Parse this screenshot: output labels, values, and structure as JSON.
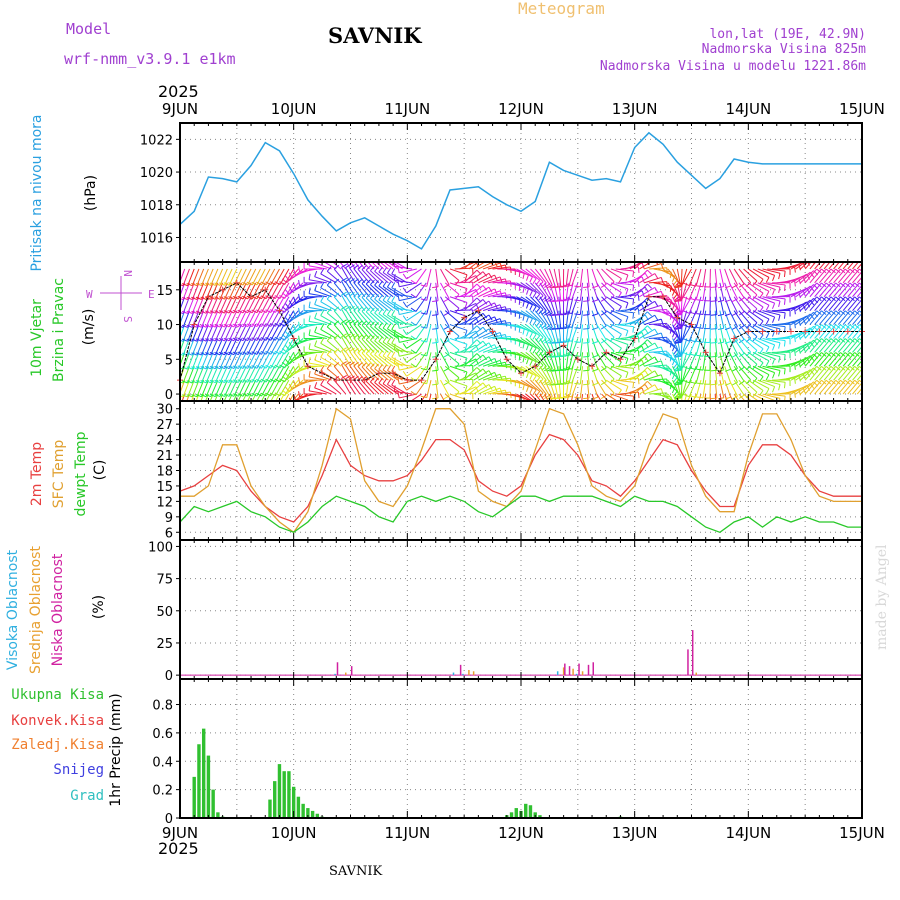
{
  "header": {
    "model_label": "Model",
    "model_name": "wrf-nmm_v3.9.1 e1km",
    "location_name": "SAVNIK",
    "chart_type_label": "Meteogram",
    "coords": "lon,lat (19E, 42.9N)",
    "elevation": "Nadmorska Visina 825m",
    "model_elevation": "Nadmorska Visina u modelu 1221.86m"
  },
  "footer": {
    "location_name": "SAVNIK",
    "credit": "made by Angel"
  },
  "x_axis": {
    "year_top": "2025",
    "year_bottom": "2025",
    "days": [
      "9JUN",
      "10JUN",
      "11JUN",
      "12JUN",
      "13JUN",
      "14JUN",
      "15JUN"
    ],
    "range_hours": [
      0,
      144
    ]
  },
  "colors": {
    "pressure": "#2aa0e0",
    "t2m": "#e84040",
    "tsfc": "#e0a030",
    "dewpt": "#28c828",
    "high_cloud": "#30b0e0",
    "mid_cloud": "#e8a030",
    "low_cloud": "#d020a0",
    "precip_total": "#30c030",
    "precip_conv": "#e84040",
    "precip_freeze": "#f08030",
    "precip_snow": "#4040e0",
    "precip_hail": "#30c0c0",
    "title_purple": "#a040d0",
    "meteogram_orange": "#f0c070",
    "wind_legend": "#c050d0"
  },
  "chart_data": [
    {
      "type": "line",
      "panel": "pressure",
      "ylabel_lines": [
        "Pritisak na nivou mora",
        "(hPa)"
      ],
      "yticks": [
        1016,
        1018,
        1020,
        1022
      ],
      "ylim": [
        1014.5,
        1023.0
      ],
      "series": [
        {
          "x": [
            0,
            3,
            6,
            9,
            12,
            15,
            18,
            21,
            24,
            27,
            30,
            33,
            36,
            39,
            42,
            45,
            48,
            51,
            54,
            57,
            60,
            63,
            66,
            69,
            72,
            75,
            78,
            81,
            84,
            87,
            90,
            93,
            96,
            99,
            102,
            105,
            108,
            111,
            114,
            117,
            120,
            123,
            126,
            129,
            132,
            135,
            138,
            141,
            144
          ],
          "y": [
            1016.8,
            1017.6,
            1019.7,
            1019.6,
            1019.4,
            1020.4,
            1021.8,
            1021.3,
            1019.9,
            1018.3,
            1017.3,
            1016.4,
            1016.9,
            1017.2,
            1016.7,
            1016.2,
            1015.8,
            1015.3,
            1016.7,
            1018.9,
            1019.0,
            1019.1,
            1018.5,
            1018.0,
            1017.6,
            1018.2,
            1020.6,
            1020.1,
            1019.8,
            1019.5,
            1019.6,
            1019.4,
            1021.5,
            1022.4,
            1021.7,
            1020.6,
            1019.8,
            1019.0,
            1019.6,
            1020.8,
            1020.6,
            1020.5,
            1020.5,
            1020.5,
            1020.5,
            1020.5,
            1020.5,
            1020.5,
            1020.5
          ]
        }
      ]
    },
    {
      "type": "barb",
      "panel": "wind",
      "ylabel_lines": [
        "10m Vjetar",
        "Brzina i Pravac",
        "(m/s)"
      ],
      "legend_compass": {
        "north": "N",
        "west": "W",
        "east": "E",
        "south": "S"
      },
      "yticks": [
        0,
        5,
        10,
        15
      ],
      "ylim": [
        -1,
        19
      ],
      "series": [
        {
          "name": "wind speed",
          "x": [
            0,
            3,
            6,
            9,
            12,
            15,
            18,
            21,
            24,
            27,
            30,
            33,
            36,
            39,
            42,
            45,
            48,
            51,
            54,
            57,
            60,
            63,
            66,
            69,
            72,
            75,
            78,
            81,
            84,
            87,
            90,
            93,
            96,
            99,
            102,
            105,
            108,
            111,
            114,
            117,
            120,
            123,
            126,
            129,
            132,
            135,
            138,
            141,
            144
          ],
          "y": [
            2,
            10,
            14,
            15,
            16,
            14,
            15,
            12,
            8,
            4,
            3,
            2,
            2,
            2,
            3,
            3,
            2,
            2,
            5,
            9,
            11,
            12,
            9,
            5,
            3,
            4,
            6,
            7,
            5,
            4,
            6,
            5,
            8,
            14,
            14,
            11,
            10,
            6,
            3,
            8,
            9,
            9,
            9,
            9,
            9,
            9,
            9,
            9,
            9
          ]
        }
      ],
      "speed_levels": [
        0,
        2,
        4,
        6,
        8,
        10,
        12,
        14,
        16,
        18
      ],
      "direction_by_hour": [
        {
          "x": 0,
          "dir": 200
        },
        {
          "x": 24,
          "dir": 210
        },
        {
          "x": 36,
          "dir": 330
        },
        {
          "x": 48,
          "dir": 300
        },
        {
          "x": 60,
          "dir": 45
        },
        {
          "x": 84,
          "dir": 200
        },
        {
          "x": 96,
          "dir": 45
        },
        {
          "x": 108,
          "dir": 210
        },
        {
          "x": 132,
          "dir": 40
        },
        {
          "x": 144,
          "dir": 40
        }
      ]
    },
    {
      "type": "line",
      "panel": "temperature",
      "ylabel_lines": [
        "2m Temp",
        "SFC Temp",
        "dewpt Temp",
        "(C)"
      ],
      "yticks": [
        6,
        9,
        12,
        15,
        18,
        21,
        24,
        27,
        30
      ],
      "ylim": [
        4.5,
        31.5
      ],
      "series": [
        {
          "name": "2m Temp",
          "x": [
            0,
            3,
            6,
            9,
            12,
            15,
            18,
            21,
            24,
            27,
            30,
            33,
            36,
            39,
            42,
            45,
            48,
            51,
            54,
            57,
            60,
            63,
            66,
            69,
            72,
            75,
            78,
            81,
            84,
            87,
            90,
            93,
            96,
            99,
            102,
            105,
            108,
            111,
            114,
            117,
            120,
            123,
            126,
            129,
            132,
            135,
            138,
            141,
            144
          ],
          "y": [
            14,
            15,
            17,
            19,
            18,
            14,
            11,
            9,
            8,
            11,
            17,
            24,
            19,
            17,
            16,
            16,
            17,
            20,
            24,
            24,
            22,
            16,
            14,
            13,
            15,
            21,
            25,
            24,
            21,
            16,
            15,
            13,
            16,
            20,
            24,
            23,
            18,
            14,
            11,
            11,
            19,
            23,
            23,
            21,
            17,
            14,
            13,
            13,
            13
          ]
        },
        {
          "name": "SFC Temp",
          "x": [
            0,
            3,
            6,
            9,
            12,
            15,
            18,
            21,
            24,
            27,
            30,
            33,
            36,
            39,
            42,
            45,
            48,
            51,
            54,
            57,
            60,
            63,
            66,
            69,
            72,
            75,
            78,
            81,
            84,
            87,
            90,
            93,
            96,
            99,
            102,
            105,
            108,
            111,
            114,
            117,
            120,
            123,
            126,
            129,
            132,
            135,
            138,
            141,
            144
          ],
          "y": [
            13,
            13,
            15,
            23,
            23,
            15,
            11,
            8,
            6,
            10,
            19,
            30,
            28,
            16,
            12,
            11,
            15,
            22,
            30,
            30,
            27,
            14,
            12,
            11,
            14,
            22,
            30,
            29,
            23,
            15,
            13,
            12,
            15,
            23,
            29,
            28,
            19,
            13,
            10,
            10,
            21,
            29,
            29,
            24,
            17,
            13,
            12,
            12,
            12
          ]
        },
        {
          "name": "dewpt Temp",
          "x": [
            0,
            3,
            6,
            9,
            12,
            15,
            18,
            21,
            24,
            27,
            30,
            33,
            36,
            39,
            42,
            45,
            48,
            51,
            54,
            57,
            60,
            63,
            66,
            69,
            72,
            75,
            78,
            81,
            84,
            87,
            90,
            93,
            96,
            99,
            102,
            105,
            108,
            111,
            114,
            117,
            120,
            123,
            126,
            129,
            132,
            135,
            138,
            141,
            144
          ],
          "y": [
            8,
            11,
            10,
            11,
            12,
            10,
            9,
            7,
            6,
            8,
            11,
            13,
            12,
            11,
            9,
            8,
            12,
            13,
            12,
            13,
            12,
            10,
            9,
            11,
            13,
            13,
            12,
            13,
            13,
            13,
            12,
            11,
            13,
            12,
            12,
            11,
            9,
            7,
            6,
            8,
            9,
            7,
            9,
            8,
            9,
            8,
            8,
            7,
            7
          ]
        }
      ]
    },
    {
      "type": "bar",
      "panel": "clouds",
      "ylabel_lines": [
        "Visoka Oblacnost",
        "Srednja Oblacnost",
        "Niska Oblacnost",
        "(%)"
      ],
      "yticks": [
        0,
        25,
        50,
        75,
        100
      ],
      "ylim": [
        -3,
        105
      ],
      "series": [
        {
          "name": "Visoka Oblacnost",
          "x": [
            33,
            58,
            60,
            80,
            84
          ],
          "values": [
            1,
            2,
            1,
            3,
            1
          ]
        },
        {
          "name": "Srednja Oblacnost",
          "x": [
            35,
            61,
            62,
            81,
            83,
            85,
            109
          ],
          "values": [
            2,
            4,
            3,
            6,
            5,
            3,
            2
          ]
        },
        {
          "name": "Niska Oblacnost",
          "x": [
            33,
            36,
            59,
            81,
            82,
            84,
            86,
            87,
            107,
            108
          ],
          "values": [
            10,
            7,
            8,
            9,
            7,
            9,
            8,
            10,
            20,
            35
          ]
        }
      ]
    },
    {
      "type": "bar",
      "panel": "precipitation",
      "ylabel_lines": [
        "1hr Precip (mm)"
      ],
      "legend": [
        "Ukupna Kisa",
        "Konvek.Kisa",
        "Zaledj.Kisa",
        "Snijeg",
        "Grad"
      ],
      "yticks": [
        0,
        0.2,
        0.4,
        0.6,
        0.8
      ],
      "ylim": [
        0,
        0.98
      ],
      "series": [
        {
          "name": "Ukupna Kisa",
          "x": [
            3,
            4,
            5,
            6,
            7,
            8,
            9,
            19,
            20,
            21,
            22,
            23,
            24,
            25,
            26,
            27,
            28,
            29,
            30,
            69,
            70,
            71,
            72,
            73,
            74,
            75,
            76,
            93
          ],
          "values": [
            0.29,
            0.52,
            0.63,
            0.44,
            0.2,
            0.04,
            0.01,
            0.13,
            0.26,
            0.38,
            0.33,
            0.33,
            0.22,
            0.15,
            0.1,
            0.07,
            0.05,
            0.03,
            0.01,
            0.02,
            0.04,
            0.07,
            0.05,
            0.1,
            0.09,
            0.04,
            0.02,
            0.01
          ]
        }
      ]
    }
  ]
}
